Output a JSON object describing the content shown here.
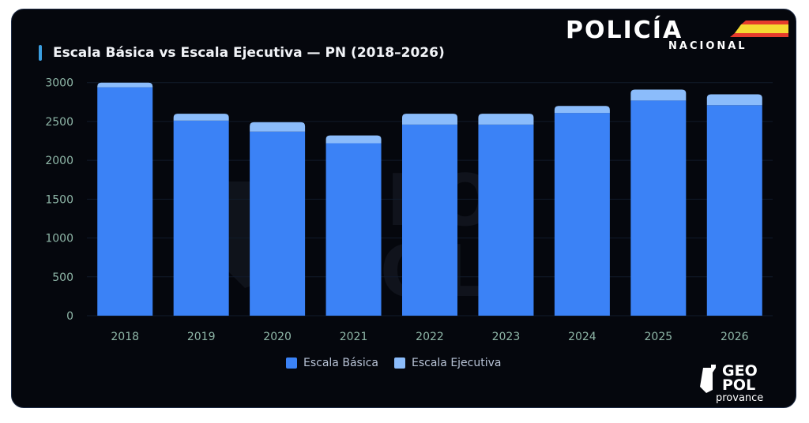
{
  "chart_data": {
    "type": "bar",
    "stacked": true,
    "title": "Escala Básica vs Escala Ejecutiva — PN (2018–2026)",
    "categories": [
      "2018",
      "2019",
      "2020",
      "2021",
      "2022",
      "2023",
      "2024",
      "2025",
      "2026"
    ],
    "series": [
      {
        "name": "Escala Básica",
        "color": "#3b82f6",
        "values": [
          2940,
          2510,
          2370,
          2220,
          2460,
          2460,
          2610,
          2770,
          2710
        ]
      },
      {
        "name": "Escala Ejecutiva",
        "color": "#8bbcfb",
        "values": [
          60,
          90,
          120,
          100,
          140,
          140,
          90,
          140,
          140
        ]
      }
    ],
    "xlabel": "",
    "ylabel": "",
    "ylim": [
      0,
      3000
    ],
    "yticks": [
      "0",
      "500",
      "1000",
      "1500",
      "2000",
      "2500",
      "3000"
    ],
    "grid": true,
    "legend": "bottom-center"
  },
  "logos": {
    "policia": "POLICÍA",
    "nacional": "NACIONAL",
    "geo": "GEO",
    "pol": "POL",
    "provance": "provance"
  }
}
